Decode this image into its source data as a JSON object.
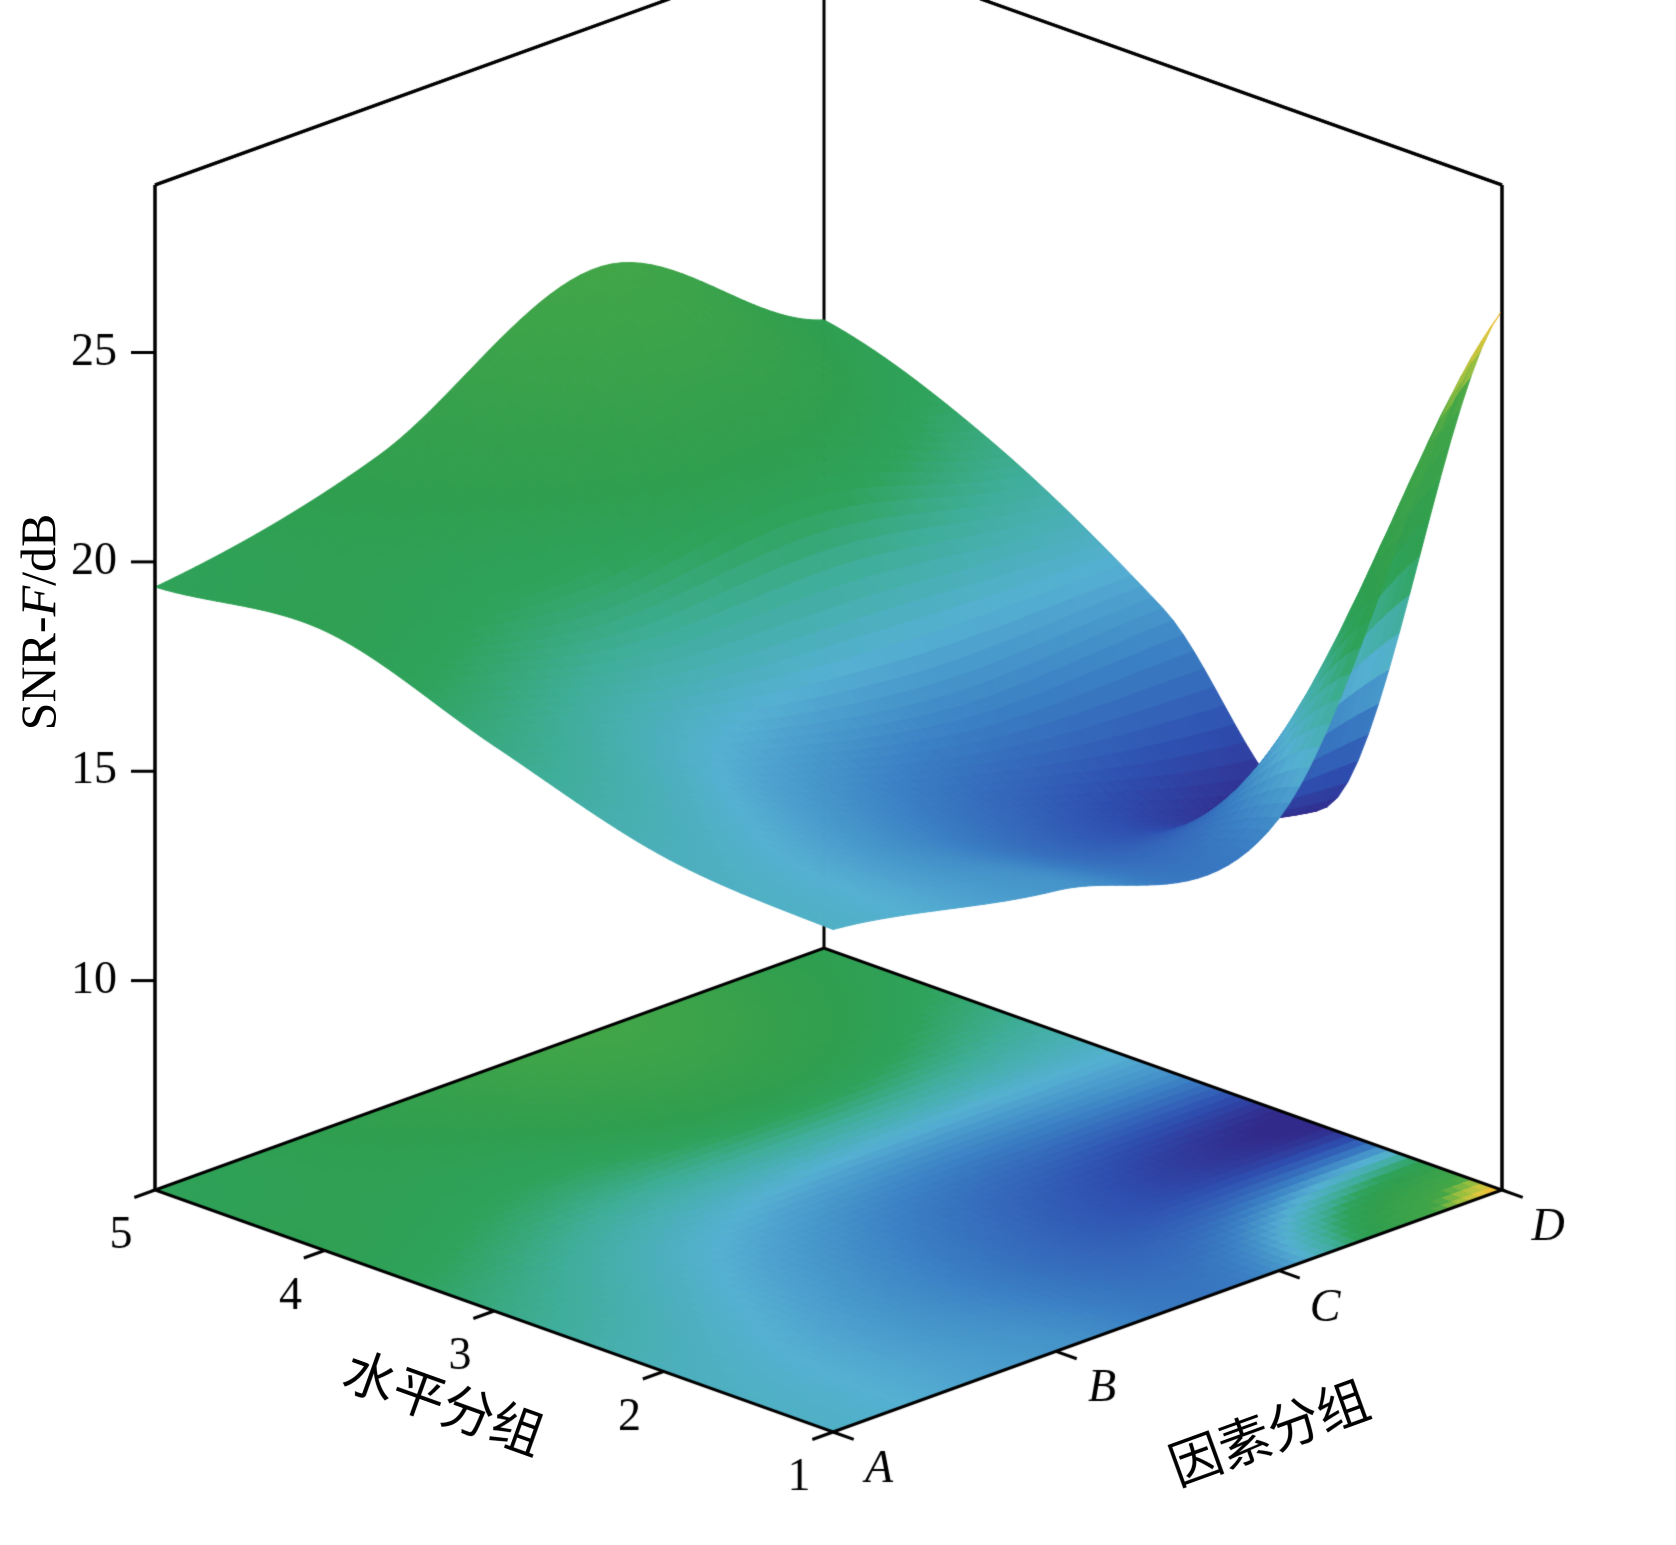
{
  "figure": {
    "background": "#ffffff",
    "line_color": "#000000"
  },
  "chart_data": {
    "type": "surface",
    "description": "3D surface plot with projected filled contour on the floor plane",
    "x_axis_label": "因素分组",
    "y_axis_label": "水平分组",
    "z_axis_label": "SNR-F/dB",
    "z_axis_label_parts": {
      "prefix": "SNR-",
      "italic": "F",
      "suffix": "/dB"
    },
    "x_categories": [
      "A",
      "B",
      "C",
      "D"
    ],
    "y_values": [
      1,
      2,
      3,
      4,
      5
    ],
    "z_ticks": [
      10,
      15,
      20,
      25
    ],
    "z_floor_tick": 5,
    "zlim": [
      5,
      29
    ],
    "caxis": [
      12.6,
      26.3
    ],
    "z": [
      [
        17.0,
        16.0,
        15.8,
        26.0
      ],
      [
        17.3,
        15.8,
        14.0,
        12.8
      ],
      [
        18.5,
        16.8,
        15.8,
        16.0
      ],
      [
        19.8,
        19.3,
        20.3,
        18.5
      ],
      [
        19.4,
        20.6,
        23.2,
        20.0
      ]
    ],
    "floor_projection": true,
    "grid": false,
    "legend": "none",
    "colormap": [
      [
        0.0,
        "#312a8b"
      ],
      [
        0.09,
        "#2e4fb0"
      ],
      [
        0.2,
        "#3a7fc4"
      ],
      [
        0.3,
        "#55b0d2"
      ],
      [
        0.4,
        "#3fae9a"
      ],
      [
        0.48,
        "#2fa35c"
      ],
      [
        0.55,
        "#2f9e4f"
      ],
      [
        0.8,
        "#43a647"
      ],
      [
        0.87,
        "#9cc03f"
      ],
      [
        0.94,
        "#ecc83d"
      ],
      [
        1.0,
        "#ef9425"
      ]
    ]
  }
}
